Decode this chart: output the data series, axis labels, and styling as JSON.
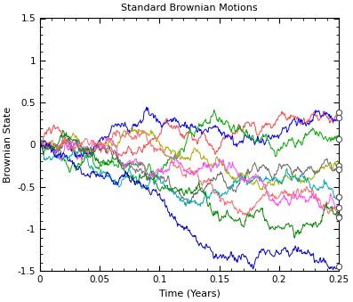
{
  "title": "Standard Brownian Motions",
  "xlabel": "Time (Years)",
  "ylabel": "Brownian State",
  "T": 0.25,
  "N": 500,
  "n_paths": 10,
  "ylim": [
    -1.5,
    1.5
  ],
  "xlim": [
    0,
    0.25
  ],
  "colors": [
    "#FF4444",
    "#0000FF",
    "#00AA00",
    "#AAAA00",
    "#666666",
    "#00AAAA",
    "#FF44FF",
    "#FF6666",
    "#008800",
    "#0000CC"
  ],
  "title_fontsize": 8,
  "label_fontsize": 8,
  "tick_fontsize": 7.5,
  "linewidth": 0.7,
  "marker_size": 4.5,
  "figsize": [
    3.97,
    3.39
  ],
  "dpi": 100
}
